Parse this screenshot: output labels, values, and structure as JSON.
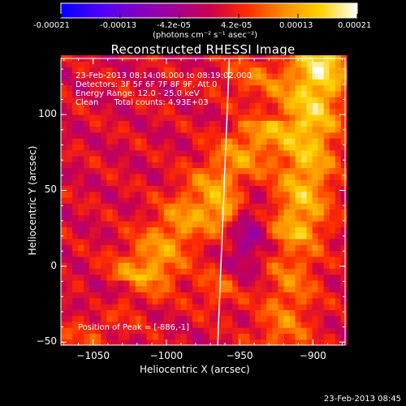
{
  "colorbar": {
    "colors": [
      "#0000ff",
      "#4b00ff",
      "#7f00c8",
      "#a0009a",
      "#c80050",
      "#ff2a00",
      "#ff8c00",
      "#ffd200",
      "#ffffff"
    ],
    "tick_labels": [
      "-0.00021",
      "-0.00013",
      "-4.2e-05",
      "4.2e-05",
      "0.00013",
      "0.00021"
    ],
    "unit_label": "(photons cm⁻² s⁻¹ asec⁻²)"
  },
  "chart_data": {
    "type": "heatmap",
    "title": "Reconstructed RHESSI Image",
    "xlabel": "Heliocentric X (arcsec)",
    "ylabel": "Heliocentric Y (arcsec)",
    "xlim": [
      -1072,
      -878
    ],
    "ylim": [
      -52,
      137
    ],
    "xticks": [
      -1050,
      -1000,
      -950,
      -900
    ],
    "yticks": [
      -50,
      0,
      50,
      100
    ],
    "xtick_labels": [
      "−1050",
      "−1000",
      "−950",
      "−900"
    ],
    "ytick_labels": [
      "−50",
      "0",
      "50",
      "100"
    ],
    "value_range": [
      -0.00021,
      0.00021
    ],
    "limb_line": [
      [
        -965,
        -52
      ],
      [
        -957,
        137
      ]
    ],
    "annotations": {
      "time_range": "23-Feb-2013 08:14:08.000 to 08:19:02.000",
      "detectors": "Detectors: 3F 5F 6F 7F 8F 9F, Att 0",
      "energy": "Energy Range: 12.0 - 25.0 keV",
      "clean": "Clean      Total counts: 4.93E+03",
      "peak": "Position of Peak = [-886,-1]"
    }
  },
  "footer": {
    "timestamp": "23-Feb-2013 08:45"
  }
}
